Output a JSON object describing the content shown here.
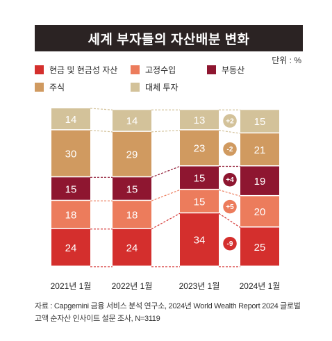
{
  "title": "세계 부자들의 자산배분 변화",
  "unit_label": "단위 : %",
  "colors": {
    "cash": "#d42f2d",
    "fixed_income": "#ec7c5c",
    "real_estate": "#8e1630",
    "equities": "#d09a60",
    "alternatives": "#d3c29a",
    "title_bg": "#2b2323"
  },
  "legend": [
    {
      "label": "현금 및 현금성 자산",
      "color": "#d42f2d"
    },
    {
      "label": "고정수입",
      "color": "#ec7c5c"
    },
    {
      "label": "부동산",
      "color": "#8e1630"
    },
    {
      "label": "주식",
      "color": "#d09a60"
    },
    {
      "label": "대체 투자",
      "color": "#d3c29a"
    }
  ],
  "chart_data": {
    "type": "bar",
    "stacked": true,
    "categories": [
      "2021년 1월",
      "2022년 1월",
      "2023년 1월",
      "2024년 1월"
    ],
    "series": [
      {
        "name": "현금 및 현금성 자산",
        "values": [
          24,
          24,
          34,
          25
        ]
      },
      {
        "name": "고정수입",
        "values": [
          18,
          18,
          15,
          20
        ]
      },
      {
        "name": "부동산",
        "values": [
          15,
          15,
          15,
          19
        ]
      },
      {
        "name": "주식",
        "values": [
          30,
          29,
          23,
          21
        ]
      },
      {
        "name": "대체 투자",
        "values": [
          14,
          14,
          13,
          15
        ]
      }
    ],
    "changes": [
      "-9",
      "+5",
      "+4",
      "-2",
      "+2"
    ]
  },
  "source": {
    "line1": "자료 : Capgemini 금융 서비스 분석 연구소, 2024년 World Wealth Report 2024 글로벌",
    "line2": "고액 순자산 인사이트 설문 조사, N=3119"
  }
}
